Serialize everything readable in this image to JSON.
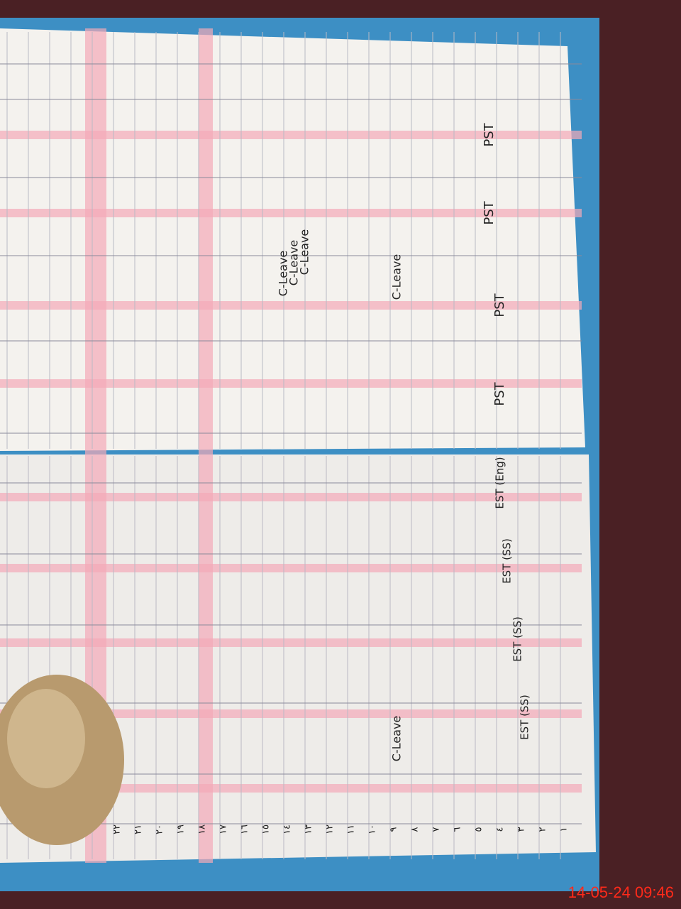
{
  "timestamp": "14-05-24  09:46",
  "left_page": {
    "column_headers": [
      "PST",
      "PST",
      "PST",
      "PST"
    ],
    "entries": [
      "C-Leave",
      "C-Leave",
      "C-Leave",
      "C-Leave"
    ]
  },
  "right_page": {
    "column_headers": [
      "EST (Eng)",
      "EST (SS)",
      "EST (SS)",
      "EST (SS)"
    ],
    "entries": [
      "C-Leave"
    ],
    "row_numbers": [
      "١",
      "٢",
      "٣",
      "٤",
      "٥",
      "٦",
      "٧",
      "٨",
      "٩",
      "١٠",
      "١١",
      "١٢",
      "١٣",
      "١٤",
      "١٥",
      "١٦",
      "١٧",
      "١٨",
      "١٩",
      "٢٠",
      "٢١",
      "٢٢"
    ]
  }
}
